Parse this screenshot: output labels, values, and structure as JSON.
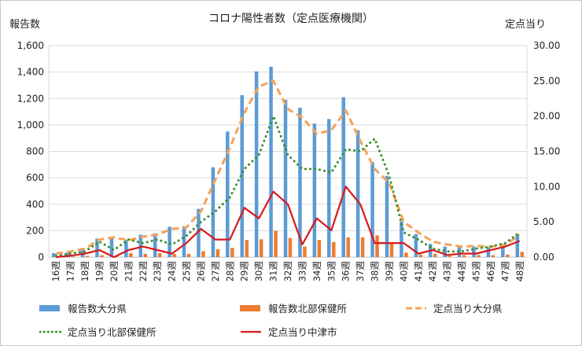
{
  "chart_data": {
    "type": "bar",
    "title": "コロナ陽性者数（定点医療機関）",
    "ylabel_left": "報告数",
    "ylabel_right": "定点当り",
    "categories": [
      "16週",
      "17週",
      "18週",
      "19週",
      "20週",
      "21週",
      "22週",
      "23週",
      "24週",
      "25週",
      "26週",
      "27週",
      "28週",
      "29週",
      "30週",
      "31週",
      "32週",
      "33週",
      "34週",
      "35週",
      "36週",
      "37週",
      "38週",
      "39週",
      "40週",
      "41週",
      "42週",
      "43週",
      "44週",
      "45週",
      "46週",
      "47週",
      "48週"
    ],
    "ylim_left": [
      0,
      1600
    ],
    "yticks_left": [
      "0",
      "200",
      "400",
      "600",
      "800",
      "1,000",
      "1,200",
      "1,400",
      "1,600"
    ],
    "ylim_right": [
      0,
      30
    ],
    "yticks_right": [
      "0.00",
      "5.00",
      "10.00",
      "15.00",
      "20.00",
      "25.00",
      "30.00"
    ],
    "grid": true,
    "legend_position": "bottom",
    "series": [
      {
        "name": "報告数大分県",
        "axis": "left",
        "kind": "bar",
        "color": "#5b9bd5",
        "values": [
          30,
          40,
          60,
          140,
          140,
          130,
          170,
          180,
          230,
          235,
          365,
          680,
          950,
          1225,
          1405,
          1440,
          1190,
          1130,
          1010,
          1045,
          1210,
          960,
          720,
          615,
          270,
          175,
          100,
          80,
          75,
          80,
          75,
          100,
          165
        ]
      },
      {
        "name": "報告数北部保健所",
        "axis": "left",
        "kind": "bar",
        "color": "#ed7d31",
        "values": [
          5,
          5,
          10,
          15,
          10,
          30,
          25,
          30,
          25,
          25,
          45,
          60,
          70,
          130,
          135,
          200,
          145,
          80,
          130,
          115,
          150,
          150,
          165,
          110,
          35,
          20,
          25,
          10,
          15,
          15,
          15,
          20,
          40
        ]
      },
      {
        "name": "定点当り大分県",
        "axis": "right",
        "kind": "line",
        "style": "dashed",
        "color": "#f4a259",
        "values": [
          0.5,
          0.8,
          1.2,
          2.5,
          2.8,
          2.4,
          2.9,
          3.2,
          4.0,
          4.2,
          6.5,
          11.0,
          15.5,
          20.5,
          24.2,
          25.0,
          21.0,
          19.8,
          17.5,
          18.0,
          20.8,
          16.5,
          12.5,
          10.5,
          5.0,
          3.5,
          2.2,
          1.8,
          1.5,
          1.6,
          1.5,
          1.7,
          3.2
        ]
      },
      {
        "name": "定点当り北部保健所",
        "axis": "right",
        "kind": "line",
        "style": "dotted",
        "color": "#3a8f2a",
        "values": [
          0.2,
          0.5,
          0.8,
          2.2,
          1.0,
          2.5,
          2.0,
          2.5,
          1.8,
          3.0,
          5.0,
          6.5,
          8.5,
          12.5,
          14.5,
          20.0,
          14.5,
          12.5,
          12.5,
          12.0,
          15.3,
          15.0,
          16.8,
          11.5,
          3.5,
          2.5,
          1.2,
          0.8,
          0.8,
          1.2,
          1.5,
          2.0,
          3.5
        ]
      },
      {
        "name": "定点当り中津市",
        "axis": "right",
        "kind": "line",
        "style": "solid",
        "color": "#d7191c",
        "values": [
          0.0,
          0.2,
          0.5,
          1.0,
          0.0,
          1.0,
          1.5,
          1.0,
          0.5,
          2.0,
          4.0,
          2.5,
          2.5,
          7.0,
          5.5,
          9.3,
          7.5,
          1.8,
          5.5,
          3.8,
          10.0,
          7.5,
          2.0,
          2.0,
          2.0,
          0.5,
          1.0,
          0.3,
          0.5,
          0.5,
          1.0,
          1.5,
          2.3
        ]
      }
    ]
  }
}
